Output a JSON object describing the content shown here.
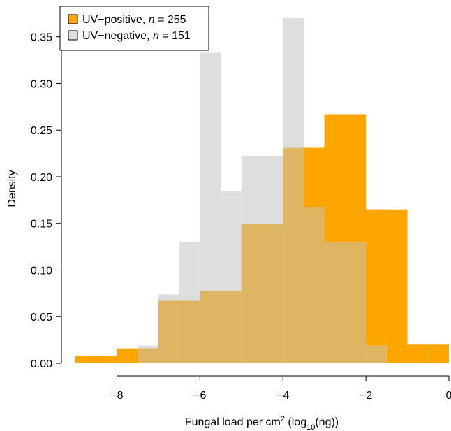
{
  "chart_data": {
    "type": "histogram",
    "title": "",
    "xlabel": "Fungal load per cm² (log₁₀(ng))",
    "ylabel": "Density",
    "xlim": [
      -9,
      0
    ],
    "ylim": [
      0,
      0.37
    ],
    "x_ticks": [
      "−8",
      "−6",
      "−4",
      "−2",
      "0"
    ],
    "x_tick_values": [
      -8,
      -6,
      -4,
      -2,
      0
    ],
    "y_ticks": [
      "0.00",
      "0.05",
      "0.10",
      "0.15",
      "0.20",
      "0.25",
      "0.30",
      "0.35"
    ],
    "y_tick_values": [
      0,
      0.05,
      0.1,
      0.15,
      0.2,
      0.25,
      0.3,
      0.35
    ],
    "bin_width": 0.5,
    "legend_position": "top-left",
    "grid": false,
    "series": [
      {
        "name": "UV−positive, n = 255",
        "legend_prefix": "UV−positive, ",
        "legend_n": "255",
        "color": "#FFA500",
        "bin_starts": [
          -9,
          -8.5,
          -8,
          -7.5,
          -7,
          -6.5,
          -6,
          -5.5,
          -5,
          -4.5,
          -4,
          -3.5,
          -3,
          -2.5,
          -2,
          -1.5,
          -1,
          -0.5
        ],
        "values": [
          0.008,
          0.008,
          0.016,
          0.016,
          0.067,
          0.067,
          0.078,
          0.078,
          0.149,
          0.149,
          0.231,
          0.231,
          0.267,
          0.267,
          0.165,
          0.165,
          0.02,
          0.02
        ]
      },
      {
        "name": "UV−negative, n = 151",
        "legend_prefix": "UV−negative, ",
        "legend_n": "151",
        "color": "#DEDEDE",
        "bin_starts": [
          -7.5,
          -7,
          -6.5,
          -6,
          -5.5,
          -5,
          -4.5,
          -4,
          -3.5,
          -3,
          -2.5,
          -2,
          -1.5
        ],
        "values": [
          0.019,
          0.074,
          0.13,
          0.333,
          0.185,
          0.222,
          0.222,
          0.37,
          0.167,
          0.13,
          0.13,
          0.019,
          0.0
        ]
      }
    ],
    "overlap_color": "#DEB563"
  }
}
